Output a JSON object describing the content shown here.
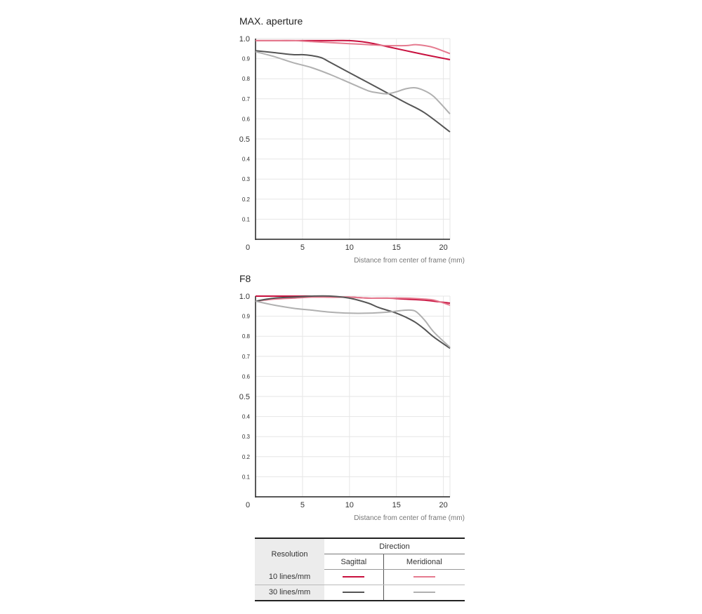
{
  "colors": {
    "sagittal_10": "#c8103e",
    "meridional_10": "#e57a8f",
    "sagittal_30": "#555555",
    "meridional_30": "#b0b0b0",
    "grid": "#e6e6e6",
    "axis": "#222222"
  },
  "chart_data": [
    {
      "type": "line",
      "title": "MAX. aperture",
      "xlabel": "Distance from center of frame (mm)",
      "ylabel": "",
      "xlim": [
        0,
        20.7
      ],
      "ylim": [
        0,
        1.0
      ],
      "x_ticks": [
        0,
        5,
        10,
        15,
        20
      ],
      "y_ticks": [
        0.1,
        0.2,
        0.3,
        0.4,
        0.5,
        0.6,
        0.7,
        0.8,
        0.9,
        1.0
      ],
      "y_tick_labels": [
        "0.1",
        "0.2",
        "0.3",
        "0.4",
        "0.5",
        "0.6",
        "0.7",
        "0.8",
        "0.9",
        "1.0"
      ],
      "x_tick_labels": [
        "0",
        "5",
        "10",
        "15",
        "20"
      ],
      "grid": true,
      "series": [
        {
          "key": "sagittal_10",
          "x": [
            0,
            2,
            4,
            6,
            8,
            10,
            12,
            14,
            16,
            18,
            20.7
          ],
          "y": [
            0.99,
            0.99,
            0.99,
            0.99,
            0.99,
            0.99,
            0.98,
            0.96,
            0.94,
            0.92,
            0.895
          ]
        },
        {
          "key": "meridional_10",
          "x": [
            0,
            2,
            4,
            6,
            8,
            10,
            12,
            14,
            16,
            17,
            18,
            19,
            20.7
          ],
          "y": [
            0.99,
            0.99,
            0.99,
            0.985,
            0.98,
            0.975,
            0.97,
            0.965,
            0.965,
            0.97,
            0.965,
            0.955,
            0.925
          ]
        },
        {
          "key": "sagittal_30",
          "x": [
            0,
            2,
            4,
            5,
            6,
            7,
            8,
            10,
            12,
            14,
            16,
            18,
            20.7
          ],
          "y": [
            0.94,
            0.93,
            0.92,
            0.92,
            0.915,
            0.905,
            0.88,
            0.83,
            0.78,
            0.73,
            0.68,
            0.63,
            0.535
          ]
        },
        {
          "key": "meridional_30",
          "x": [
            0,
            2,
            4,
            6,
            8,
            10,
            12,
            13,
            14,
            15,
            16,
            17,
            18,
            19,
            20.7
          ],
          "y": [
            0.935,
            0.91,
            0.88,
            0.855,
            0.82,
            0.78,
            0.74,
            0.73,
            0.725,
            0.735,
            0.75,
            0.755,
            0.74,
            0.71,
            0.625
          ]
        }
      ]
    },
    {
      "type": "line",
      "title": "F8",
      "xlabel": "Distance from center of frame (mm)",
      "ylabel": "",
      "xlim": [
        0,
        20.7
      ],
      "ylim": [
        0,
        1.0
      ],
      "x_ticks": [
        0,
        5,
        10,
        15,
        20
      ],
      "y_ticks": [
        0.1,
        0.2,
        0.3,
        0.4,
        0.5,
        0.6,
        0.7,
        0.8,
        0.9,
        1.0
      ],
      "y_tick_labels": [
        "0.1",
        "0.2",
        "0.3",
        "0.4",
        "0.5",
        "0.6",
        "0.7",
        "0.8",
        "0.9",
        "1.0"
      ],
      "x_tick_labels": [
        "0",
        "5",
        "10",
        "15",
        "20"
      ],
      "grid": true,
      "series": [
        {
          "key": "sagittal_10",
          "x": [
            0,
            2,
            4,
            6,
            8,
            10,
            12,
            14,
            16,
            18,
            20.7
          ],
          "y": [
            1.0,
            1.0,
            1.0,
            1.0,
            0.995,
            0.995,
            0.99,
            0.99,
            0.985,
            0.98,
            0.965
          ]
        },
        {
          "key": "meridional_10",
          "x": [
            0,
            2,
            4,
            6,
            8,
            10,
            12,
            14,
            16,
            18,
            19,
            20.7
          ],
          "y": [
            0.975,
            0.985,
            0.99,
            0.995,
            0.995,
            0.995,
            0.99,
            0.99,
            0.99,
            0.985,
            0.98,
            0.955
          ]
        },
        {
          "key": "sagittal_30",
          "x": [
            0,
            2,
            4,
            6,
            8,
            10,
            12,
            13,
            14,
            15,
            16,
            17,
            18,
            19,
            20.7
          ],
          "y": [
            0.975,
            0.99,
            0.995,
            1.0,
            1.0,
            0.99,
            0.965,
            0.945,
            0.93,
            0.915,
            0.895,
            0.87,
            0.835,
            0.795,
            0.74
          ]
        },
        {
          "key": "meridional_30",
          "x": [
            0,
            2,
            4,
            6,
            8,
            10,
            12,
            14,
            15,
            16,
            17,
            18,
            19,
            20.7
          ],
          "y": [
            0.975,
            0.955,
            0.94,
            0.93,
            0.92,
            0.915,
            0.915,
            0.92,
            0.925,
            0.93,
            0.925,
            0.88,
            0.82,
            0.745
          ]
        }
      ]
    }
  ],
  "legend": {
    "resolution_header": "Resolution",
    "direction_header": "Direction",
    "sagittal_label": "Sagittal",
    "meridional_label": "Meridional",
    "row_10_label": "10 lines/mm",
    "row_30_label": "30 lines/mm"
  }
}
